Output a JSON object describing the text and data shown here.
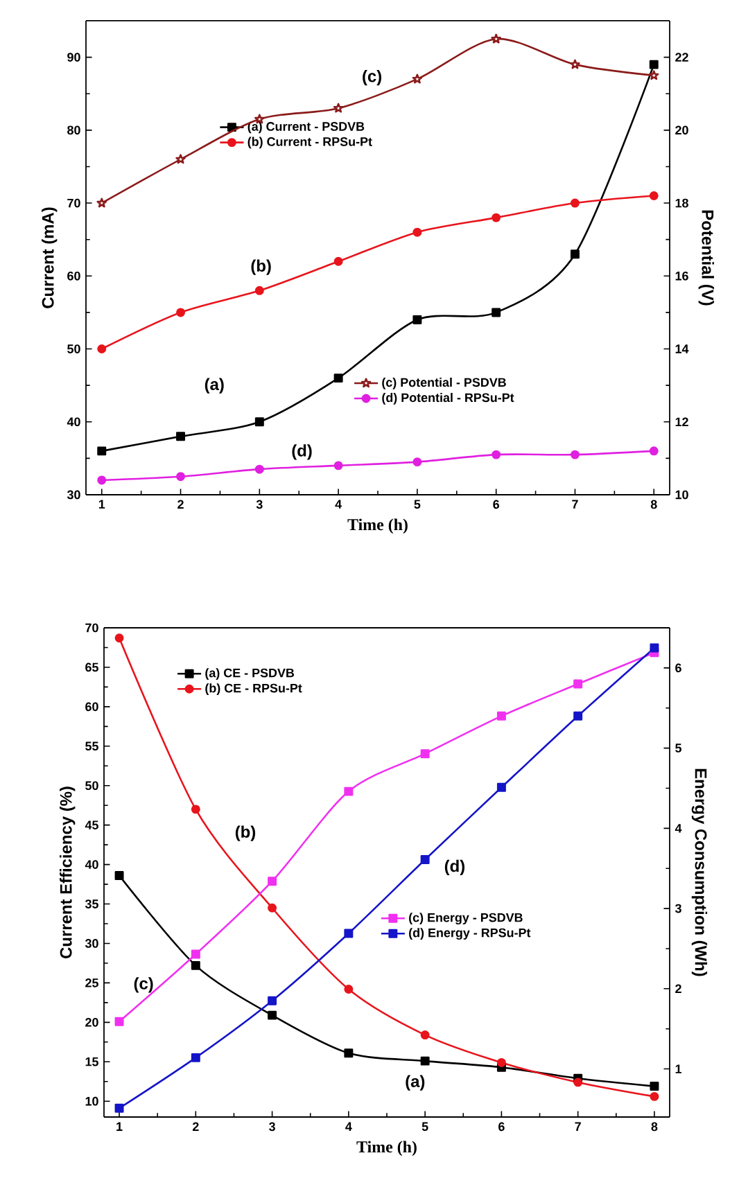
{
  "chart_data": [
    {
      "type": "line",
      "xlabel": "Time (h)",
      "ylabel": "Current (mA)",
      "y2label": "Potential (V)",
      "x": [
        1,
        2,
        3,
        4,
        5,
        6,
        7,
        8
      ],
      "xlim": [
        0.8,
        8.2
      ],
      "xticks": [
        1,
        2,
        3,
        4,
        5,
        6,
        7,
        8
      ],
      "ylim": [
        30,
        95
      ],
      "yticks": [
        30,
        40,
        50,
        60,
        70,
        80,
        90
      ],
      "y2lim": [
        10,
        23
      ],
      "y2ticks": [
        10,
        12,
        14,
        16,
        18,
        20,
        22
      ],
      "legend": "bottom left",
      "series": [
        {
          "name": "(a) Current - PSDVB",
          "color": "#000000",
          "marker": "square",
          "axis": "y",
          "values": [
            36,
            38,
            40,
            46,
            54,
            55,
            63,
            89
          ]
        },
        {
          "name": "(b) Current - RPSu-Pt",
          "color": "#e8141c",
          "marker": "circle",
          "axis": "y",
          "values": [
            50,
            55,
            58,
            62,
            66,
            68,
            70,
            71
          ]
        },
        {
          "name": "(c) Potential - PSDVB",
          "color": "#8b1a1a",
          "marker": "star",
          "axis": "y2",
          "values": [
            18.0,
            19.2,
            20.3,
            20.6,
            21.4,
            22.5,
            21.8,
            21.5
          ]
        },
        {
          "name": "(d) Potential - RPSu-Pt",
          "color": "#e020e0",
          "marker": "circle",
          "axis": "y2",
          "values": [
            10.4,
            10.5,
            10.7,
            10.8,
            10.9,
            11.1,
            11.1,
            11.2
          ]
        }
      ],
      "annotations": [
        "(c)",
        "(b)",
        "(a)",
        "(d)"
      ]
    },
    {
      "type": "line",
      "xlabel": "Time (h)",
      "ylabel": "Current Efficiency (%)",
      "y2label": "Energy Consumption (Wh)",
      "x": [
        1,
        2,
        3,
        4,
        5,
        6,
        7,
        8
      ],
      "xlim": [
        0.8,
        8.2
      ],
      "xticks": [
        1,
        2,
        3,
        4,
        5,
        6,
        7,
        8
      ],
      "ylim": [
        8,
        70
      ],
      "yticks": [
        10,
        15,
        20,
        25,
        30,
        35,
        40,
        45,
        50,
        55,
        60,
        65,
        70
      ],
      "y2lim": [
        0.4,
        6.5
      ],
      "y2ticks": [
        1,
        2,
        3,
        4,
        5,
        6
      ],
      "legend": "top left",
      "series": [
        {
          "name": "(a) CE - PSDVB",
          "color": "#000000",
          "marker": "square",
          "axis": "y",
          "values": [
            38.6,
            27.2,
            20.9,
            16.1,
            15.1,
            14.3,
            12.9,
            11.9
          ]
        },
        {
          "name": "(b) CE - RPSu-Pt",
          "color": "#e8141c",
          "marker": "circle",
          "axis": "y",
          "values": [
            68.7,
            47.0,
            34.5,
            24.2,
            18.4,
            14.9,
            12.4,
            10.6
          ]
        },
        {
          "name": "(c) Energy - PSDVB",
          "color": "#f030f0",
          "marker": "square",
          "axis": "y2",
          "values": [
            1.59,
            2.43,
            3.34,
            4.46,
            4.93,
            5.4,
            5.8,
            6.19
          ]
        },
        {
          "name": "(d) Energy - RPSu-Pt",
          "color": "#1414c8",
          "marker": "square",
          "axis": "y2",
          "values": [
            0.51,
            1.14,
            1.85,
            2.69,
            3.61,
            4.51,
            5.4,
            6.25
          ]
        }
      ],
      "annotations": [
        "(b)",
        "(d)",
        "(c)",
        "(a)"
      ]
    }
  ]
}
